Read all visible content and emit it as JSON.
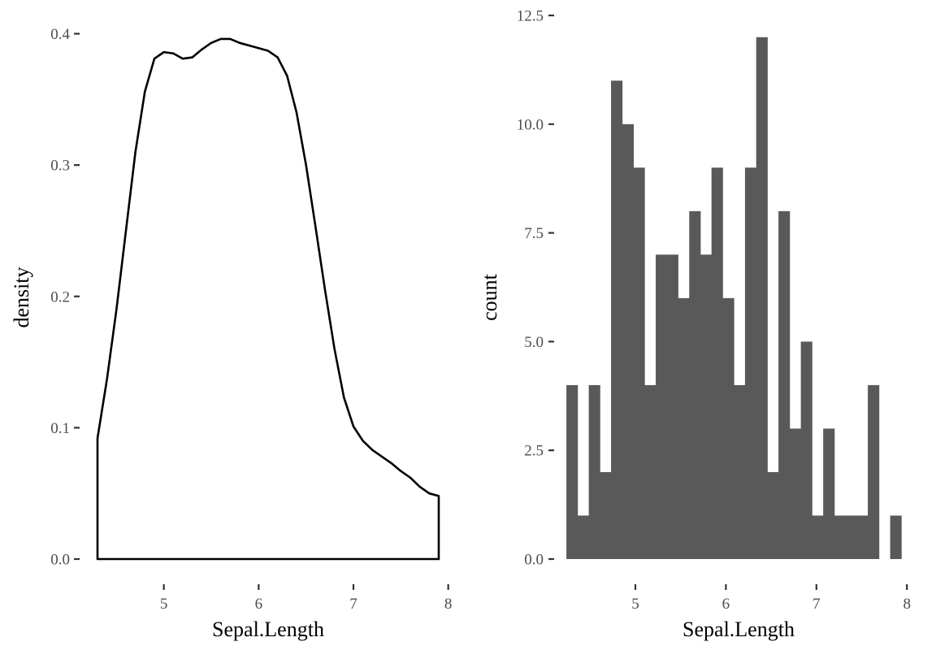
{
  "chart_data": [
    {
      "type": "area",
      "xlabel": "Sepal.Length",
      "ylabel": "density",
      "xlim": [
        4.3,
        7.9
      ],
      "ylim": [
        0,
        0.4
      ],
      "x_ticks": [
        5,
        6,
        7,
        8
      ],
      "x_tick_labels": [
        "5",
        "6",
        "7",
        "8"
      ],
      "y_ticks": [
        0.0,
        0.1,
        0.2,
        0.3,
        0.4
      ],
      "y_tick_labels": [
        "0.0",
        "0.1",
        "0.2",
        "0.3",
        "0.4"
      ],
      "grid": false,
      "line_color": "#000000",
      "fill_color": "#ffffff",
      "series": [
        {
          "x": [
            4.3,
            4.4,
            4.5,
            4.6,
            4.7,
            4.8,
            4.9,
            5.0,
            5.1,
            5.2,
            5.3,
            5.4,
            5.5,
            5.6,
            5.7,
            5.8,
            5.9,
            6.0,
            6.1,
            6.2,
            6.3,
            6.4,
            6.5,
            6.6,
            6.7,
            6.8,
            6.9,
            7.0,
            7.1,
            7.2,
            7.3,
            7.4,
            7.5,
            7.6,
            7.7,
            7.8,
            7.9
          ],
          "y": [
            0.092,
            0.137,
            0.19,
            0.25,
            0.31,
            0.356,
            0.381,
            0.386,
            0.385,
            0.381,
            0.382,
            0.388,
            0.393,
            0.396,
            0.396,
            0.393,
            0.391,
            0.389,
            0.387,
            0.382,
            0.368,
            0.34,
            0.3,
            0.253,
            0.205,
            0.16,
            0.123,
            0.101,
            0.09,
            0.083,
            0.078,
            0.073,
            0.067,
            0.062,
            0.055,
            0.05,
            0.048
          ]
        }
      ]
    },
    {
      "type": "bar",
      "xlabel": "Sepal.Length",
      "ylabel": "count",
      "xlim": [
        4.3,
        8.0
      ],
      "ylim": [
        0,
        12.5
      ],
      "x_ticks": [
        5,
        6,
        7,
        8
      ],
      "x_tick_labels": [
        "5",
        "6",
        "7",
        "8"
      ],
      "y_ticks": [
        0.0,
        2.5,
        5.0,
        7.5,
        10.0,
        12.5
      ],
      "y_tick_labels": [
        "0.0",
        "2.5",
        "5.0",
        "7.5",
        "10.0",
        "12.5"
      ],
      "grid": false,
      "bar_color": "#595959",
      "bin_width": 0.12333,
      "bin_starts": [
        4.238,
        4.361,
        4.485,
        4.608,
        4.731,
        4.855,
        4.978,
        5.101,
        5.225,
        5.348,
        5.471,
        5.595,
        5.718,
        5.841,
        5.965,
        6.088,
        6.211,
        6.335,
        6.458,
        6.581,
        6.705,
        6.828,
        6.951,
        7.075,
        7.198,
        7.321,
        7.445,
        7.568,
        7.691,
        7.815
      ],
      "values": [
        4,
        1,
        4,
        2,
        11,
        10,
        9,
        4,
        7,
        7,
        6,
        8,
        7,
        9,
        6,
        4,
        9,
        12,
        2,
        8,
        3,
        5,
        1,
        3,
        1,
        1,
        1,
        4,
        0,
        1
      ]
    }
  ]
}
